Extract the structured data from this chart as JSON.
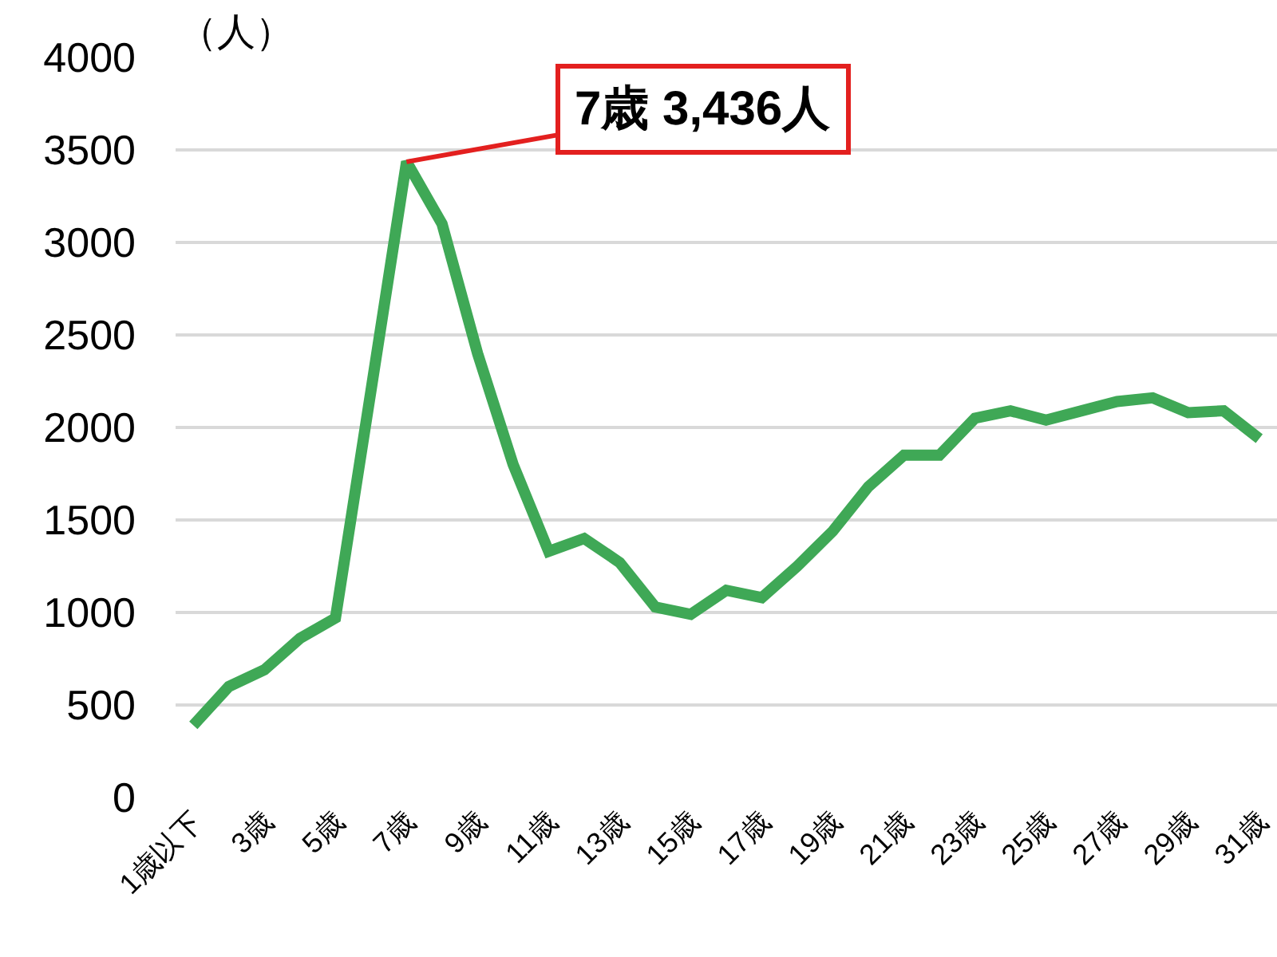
{
  "chart_data": {
    "type": "line",
    "ylabel": "（人）",
    "categories": [
      "1歳以下",
      null,
      "3歳",
      null,
      "5歳",
      null,
      "7歳",
      null,
      "9歳",
      null,
      "11歳",
      null,
      "13歳",
      null,
      "15歳",
      null,
      "17歳",
      null,
      "19歳",
      null,
      "21歳",
      null,
      "23歳",
      null,
      "25歳",
      null,
      "27歳",
      null,
      "29歳",
      null,
      "31歳"
    ],
    "series": [
      {
        "color": "#3fa856",
        "values": [
          390,
          600,
          690,
          860,
          970,
          2200,
          3436,
          3100,
          2400,
          1800,
          1330,
          1400,
          1270,
          1030,
          990,
          1120,
          1080,
          1250,
          1440,
          1680,
          1850,
          1850,
          2050,
          2090,
          2040,
          2090,
          2140,
          2160,
          2080,
          2090,
          1940
        ]
      }
    ],
    "ylim": [
      0,
      4000
    ],
    "yticks": [
      0,
      500,
      1000,
      1500,
      2000,
      2500,
      3000,
      3500,
      4000
    ],
    "grid": "y",
    "annotations": [
      {
        "text": "7歳 3,436人",
        "x": "7歳",
        "y": 3436
      }
    ]
  }
}
